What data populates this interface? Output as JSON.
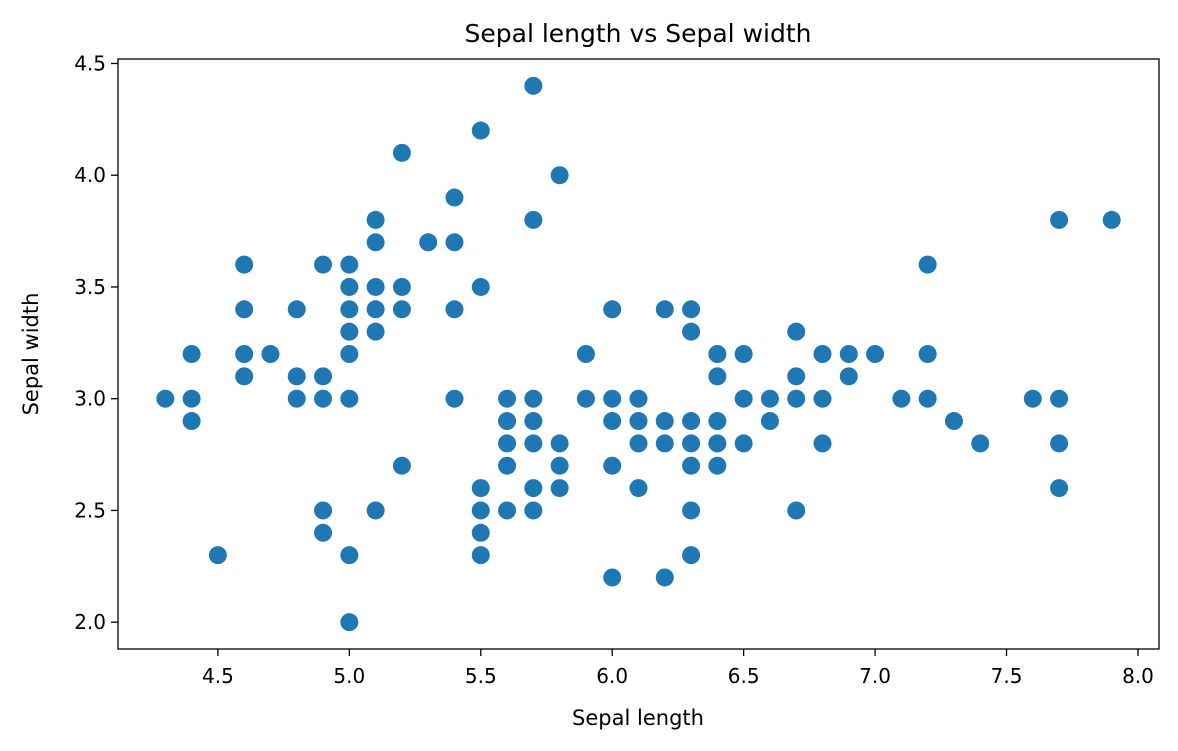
{
  "chart_data": {
    "type": "scatter",
    "title": "Sepal length vs Sepal width",
    "xlabel": "Sepal length",
    "ylabel": "Sepal width",
    "xlim": [
      4.12,
      8.08
    ],
    "ylim": [
      1.88,
      4.52
    ],
    "xticks": [
      "4.5",
      "5.0",
      "5.5",
      "6.0",
      "6.5",
      "7.0",
      "7.5",
      "8.0"
    ],
    "yticks": [
      "2.0",
      "2.5",
      "3.0",
      "3.5",
      "4.0",
      "4.5"
    ],
    "grid": false,
    "color": "#1f77b4",
    "series": [
      {
        "points": [
          [
            4.3,
            3.0
          ],
          [
            4.4,
            3.2
          ],
          [
            4.4,
            3.0
          ],
          [
            4.4,
            2.9
          ],
          [
            4.5,
            2.3
          ],
          [
            4.6,
            3.6
          ],
          [
            4.6,
            3.4
          ],
          [
            4.6,
            3.2
          ],
          [
            4.6,
            3.1
          ],
          [
            4.7,
            3.2
          ],
          [
            4.8,
            3.4
          ],
          [
            4.8,
            3.1
          ],
          [
            4.8,
            3.0
          ],
          [
            4.9,
            3.6
          ],
          [
            4.9,
            3.1
          ],
          [
            4.9,
            3.0
          ],
          [
            4.9,
            2.5
          ],
          [
            4.9,
            2.4
          ],
          [
            5.0,
            3.6
          ],
          [
            5.0,
            3.5
          ],
          [
            5.0,
            3.4
          ],
          [
            5.0,
            3.3
          ],
          [
            5.0,
            3.2
          ],
          [
            5.0,
            3.0
          ],
          [
            5.0,
            2.3
          ],
          [
            5.0,
            2.0
          ],
          [
            5.1,
            3.8
          ],
          [
            5.1,
            3.7
          ],
          [
            5.1,
            3.5
          ],
          [
            5.1,
            3.4
          ],
          [
            5.1,
            3.3
          ],
          [
            5.1,
            2.5
          ],
          [
            5.2,
            4.1
          ],
          [
            5.2,
            3.5
          ],
          [
            5.2,
            3.4
          ],
          [
            5.2,
            2.7
          ],
          [
            5.3,
            3.7
          ],
          [
            5.4,
            3.9
          ],
          [
            5.4,
            3.7
          ],
          [
            5.4,
            3.4
          ],
          [
            5.4,
            3.0
          ],
          [
            5.5,
            4.2
          ],
          [
            5.5,
            3.5
          ],
          [
            5.5,
            2.6
          ],
          [
            5.5,
            2.5
          ],
          [
            5.5,
            2.4
          ],
          [
            5.5,
            2.3
          ],
          [
            5.6,
            3.0
          ],
          [
            5.6,
            2.9
          ],
          [
            5.6,
            2.8
          ],
          [
            5.6,
            2.7
          ],
          [
            5.6,
            2.5
          ],
          [
            5.7,
            4.4
          ],
          [
            5.7,
            3.8
          ],
          [
            5.7,
            3.0
          ],
          [
            5.7,
            2.9
          ],
          [
            5.7,
            2.8
          ],
          [
            5.7,
            2.6
          ],
          [
            5.7,
            2.5
          ],
          [
            5.8,
            4.0
          ],
          [
            5.8,
            2.8
          ],
          [
            5.8,
            2.7
          ],
          [
            5.8,
            2.6
          ],
          [
            5.9,
            3.2
          ],
          [
            5.9,
            3.0
          ],
          [
            6.0,
            3.4
          ],
          [
            6.0,
            3.0
          ],
          [
            6.0,
            2.9
          ],
          [
            6.0,
            2.7
          ],
          [
            6.0,
            2.2
          ],
          [
            6.1,
            3.0
          ],
          [
            6.1,
            2.9
          ],
          [
            6.1,
            2.8
          ],
          [
            6.1,
            2.6
          ],
          [
            6.2,
            3.4
          ],
          [
            6.2,
            2.9
          ],
          [
            6.2,
            2.8
          ],
          [
            6.2,
            2.2
          ],
          [
            6.3,
            3.4
          ],
          [
            6.3,
            3.3
          ],
          [
            6.3,
            2.9
          ],
          [
            6.3,
            2.8
          ],
          [
            6.3,
            2.7
          ],
          [
            6.3,
            2.5
          ],
          [
            6.3,
            2.3
          ],
          [
            6.4,
            3.2
          ],
          [
            6.4,
            3.1
          ],
          [
            6.4,
            2.9
          ],
          [
            6.4,
            2.8
          ],
          [
            6.4,
            2.7
          ],
          [
            6.5,
            3.2
          ],
          [
            6.5,
            3.0
          ],
          [
            6.5,
            2.8
          ],
          [
            6.6,
            3.0
          ],
          [
            6.6,
            2.9
          ],
          [
            6.7,
            3.3
          ],
          [
            6.7,
            3.1
          ],
          [
            6.7,
            3.0
          ],
          [
            6.7,
            2.5
          ],
          [
            6.8,
            3.2
          ],
          [
            6.8,
            3.0
          ],
          [
            6.8,
            2.8
          ],
          [
            6.9,
            3.2
          ],
          [
            6.9,
            3.1
          ],
          [
            7.0,
            3.2
          ],
          [
            7.1,
            3.0
          ],
          [
            7.2,
            3.6
          ],
          [
            7.2,
            3.2
          ],
          [
            7.2,
            3.0
          ],
          [
            7.3,
            2.9
          ],
          [
            7.4,
            2.8
          ],
          [
            7.6,
            3.0
          ],
          [
            7.7,
            3.8
          ],
          [
            7.7,
            3.0
          ],
          [
            7.7,
            2.8
          ],
          [
            7.7,
            2.6
          ],
          [
            7.9,
            3.8
          ]
        ]
      }
    ]
  }
}
